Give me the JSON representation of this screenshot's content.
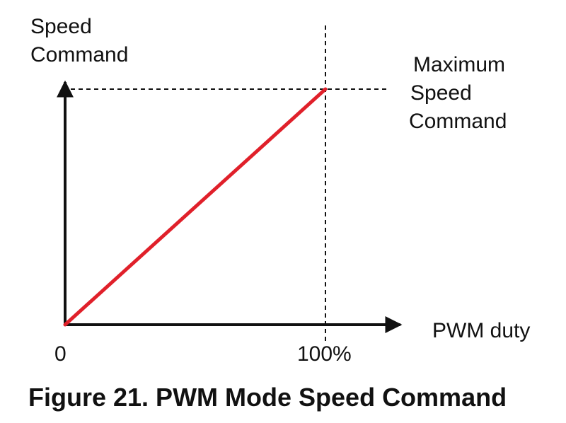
{
  "caption": "Figure 21.  PWM Mode Speed Command",
  "chart_data": {
    "type": "line",
    "ylabel": [
      "Speed",
      "Command"
    ],
    "xlabel": "PWM duty",
    "x_ticks": [
      "0",
      "100%"
    ],
    "annotation": [
      "Maximum",
      "Speed",
      "Command"
    ],
    "series": [
      {
        "x": [
          0,
          100
        ],
        "y": [
          0,
          100
        ],
        "color": "#e0202a"
      }
    ],
    "xlim": [
      0,
      100
    ],
    "ylim": [
      0,
      100
    ],
    "grid": false
  }
}
